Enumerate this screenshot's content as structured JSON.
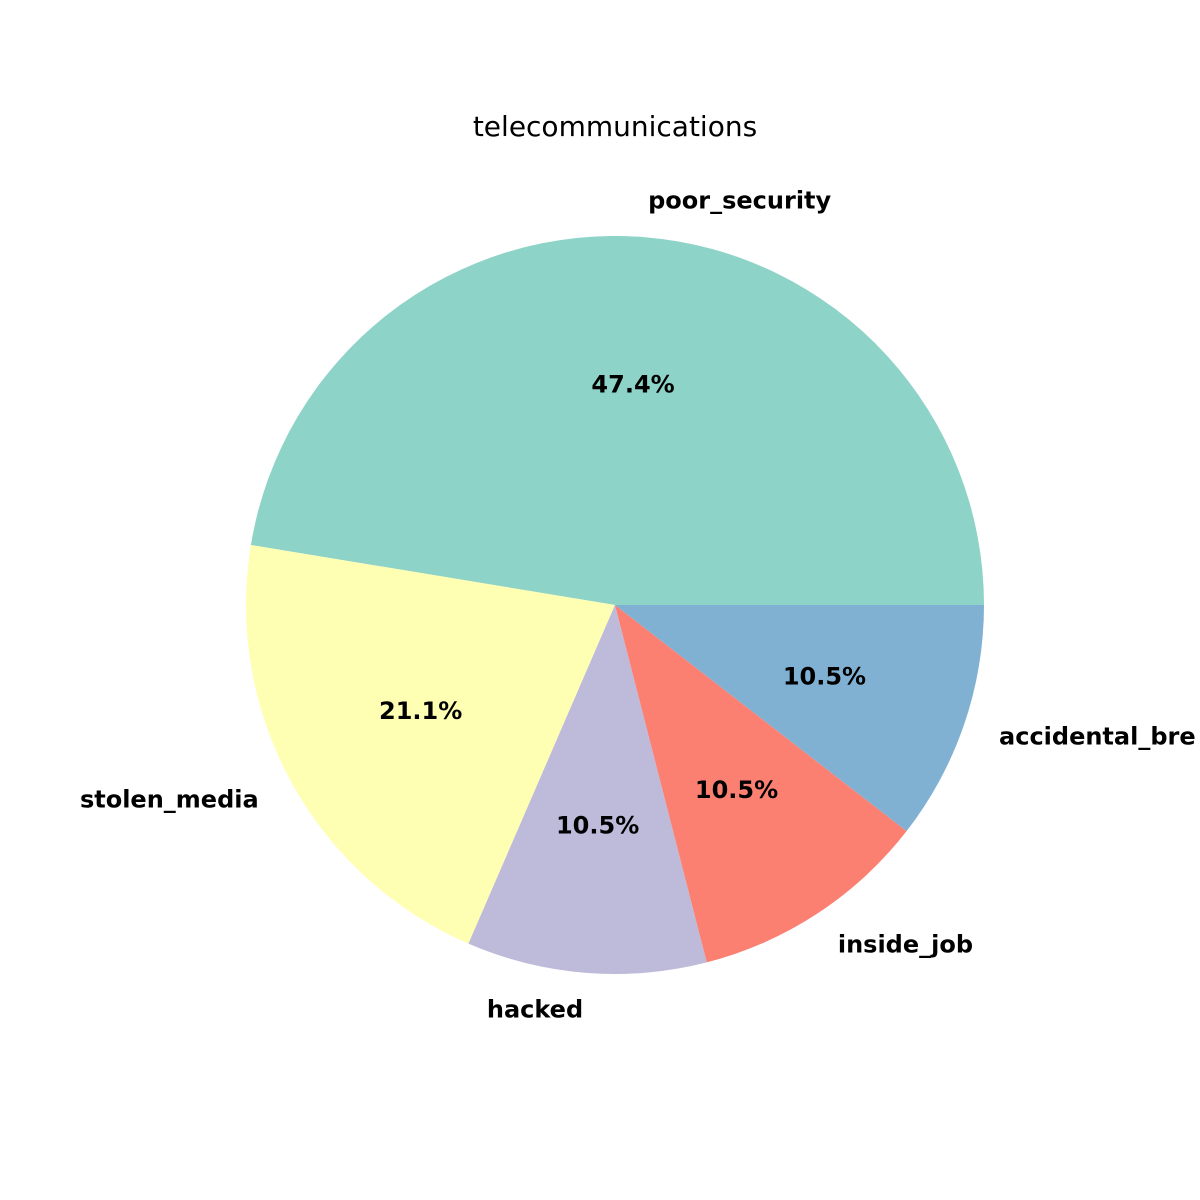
{
  "chart_data": {
    "type": "pie",
    "title": "telecommunications",
    "slices": [
      {
        "label": "poor_security",
        "value": 47.4,
        "pct_label": "47.4%",
        "color": "#8dd3c7"
      },
      {
        "label": "stolen_media",
        "value": 21.1,
        "pct_label": "21.1%",
        "color": "#ffffb3"
      },
      {
        "label": "hacked",
        "value": 10.5,
        "pct_label": "10.5%",
        "color": "#bebada"
      },
      {
        "label": "inside_job",
        "value": 10.5,
        "pct_label": "10.5%",
        "color": "#fb8072"
      },
      {
        "label": "accidental_breach",
        "display_label": "accidental_bre",
        "value": 10.5,
        "pct_label": "10.5%",
        "color": "#80b1d3"
      }
    ],
    "start_angle": "0 degrees (3 o'clock), counterclockwise",
    "legend": "none"
  }
}
